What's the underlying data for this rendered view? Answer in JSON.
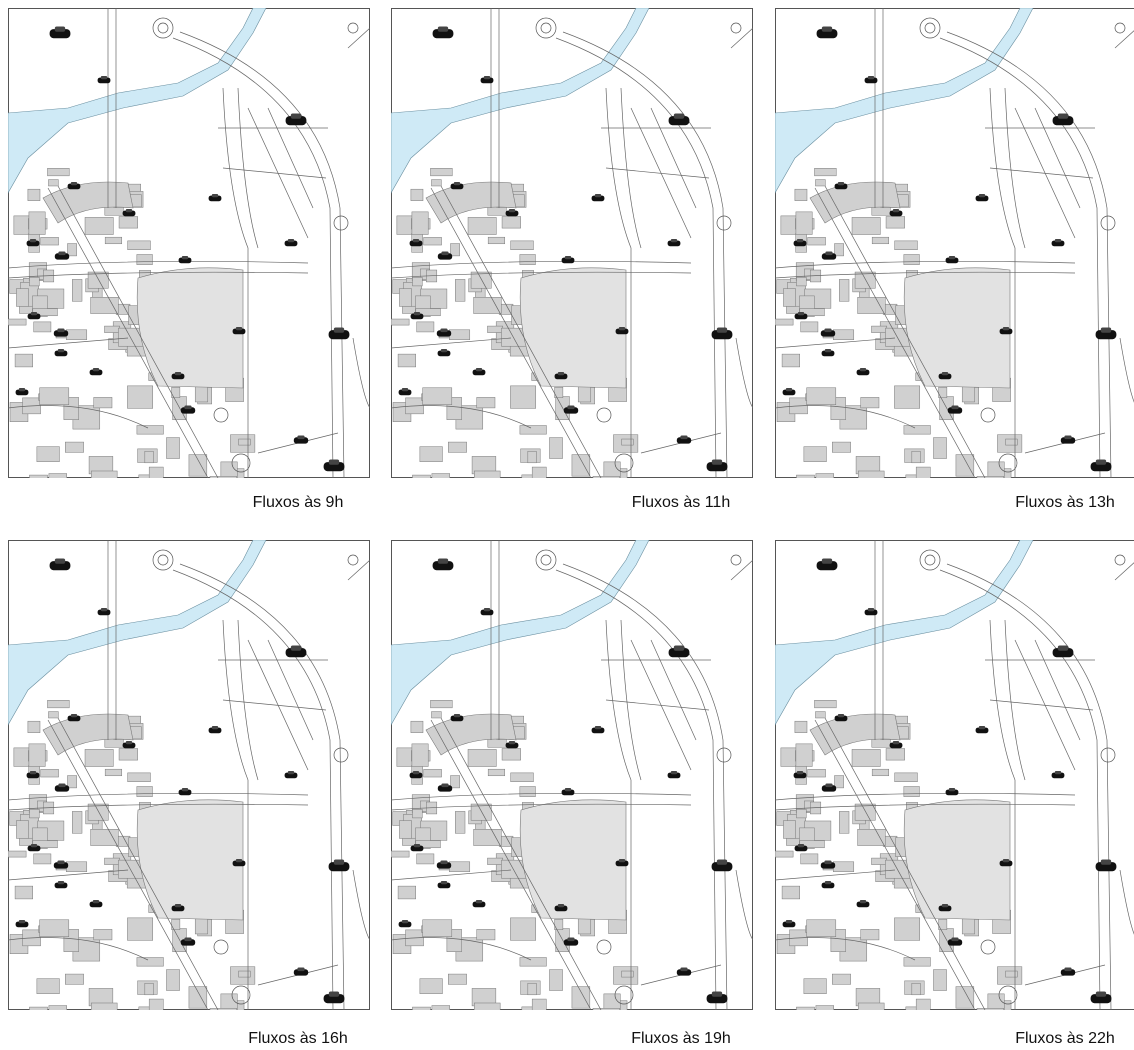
{
  "panels": [
    {
      "caption": "Fluxos às 9h"
    },
    {
      "caption": "Fluxos às 11h"
    },
    {
      "caption": "Fluxos às 13h"
    },
    {
      "caption": "Fluxos às 16h"
    },
    {
      "caption": "Fluxos às 19h"
    },
    {
      "caption": "Fluxos às 22h"
    }
  ]
}
